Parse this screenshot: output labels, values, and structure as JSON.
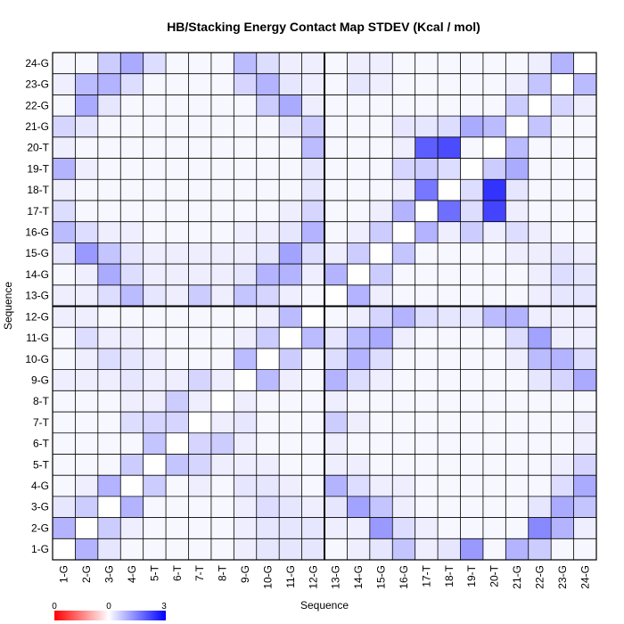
{
  "chart_data": {
    "type": "heatmap",
    "title": "HB/Stacking Energy Contact Map STDEV (Kcal / mol)",
    "xlabel": "Sequence",
    "ylabel": "Sequence",
    "labels": [
      "1-G",
      "2-G",
      "3-G",
      "4-G",
      "5-T",
      "6-T",
      "7-T",
      "8-T",
      "9-G",
      "10-G",
      "11-G",
      "12-G",
      "13-G",
      "14-G",
      "15-G",
      "16-G",
      "17-T",
      "18-T",
      "19-T",
      "20-T",
      "21-G",
      "22-G",
      "23-G",
      "24-G"
    ],
    "color_scale": {
      "min": 0,
      "mid": 0,
      "max": 3,
      "low_color": "#ff0000",
      "mid_color": "#ffffff",
      "high_color": "#0000ff"
    },
    "scale_ticks": [
      "0",
      "0",
      "3"
    ],
    "grid": true,
    "divider_after_index": 12,
    "values": [
      [
        0.0,
        0.9,
        0.3,
        0.1,
        0.1,
        0.1,
        0.1,
        0.1,
        0.2,
        0.3,
        0.3,
        0.3,
        0.1,
        0.2,
        0.3,
        0.7,
        0.2,
        0.3,
        1.2,
        0.1,
        0.9,
        0.6,
        0.1,
        0.1
      ],
      [
        0.9,
        0.0,
        0.6,
        0.2,
        0.1,
        0.1,
        0.1,
        0.1,
        0.2,
        0.3,
        0.3,
        0.3,
        0.2,
        0.2,
        1.2,
        0.4,
        0.2,
        0.1,
        0.1,
        0.1,
        0.1,
        1.4,
        0.9,
        0.2
      ],
      [
        0.3,
        0.6,
        0.0,
        0.9,
        0.1,
        0.1,
        0.1,
        0.1,
        0.2,
        0.4,
        0.3,
        0.2,
        0.3,
        1.1,
        0.7,
        0.2,
        0.1,
        0.1,
        0.1,
        0.1,
        0.1,
        0.3,
        1.0,
        0.7
      ],
      [
        0.1,
        0.2,
        0.9,
        0.0,
        0.6,
        0.1,
        0.2,
        0.1,
        0.3,
        0.3,
        0.2,
        0.1,
        0.9,
        0.4,
        0.2,
        0.2,
        0.1,
        0.1,
        0.1,
        0.1,
        0.1,
        0.1,
        0.4,
        1.0
      ],
      [
        0.1,
        0.1,
        0.1,
        0.6,
        0.0,
        0.7,
        0.5,
        0.2,
        0.2,
        0.2,
        0.1,
        0.1,
        0.2,
        0.2,
        0.1,
        0.1,
        0.1,
        0.1,
        0.1,
        0.1,
        0.1,
        0.1,
        0.2,
        0.5
      ],
      [
        0.1,
        0.1,
        0.1,
        0.1,
        0.7,
        0.0,
        0.5,
        0.6,
        0.2,
        0.1,
        0.1,
        0.1,
        0.2,
        0.1,
        0.1,
        0.1,
        0.1,
        0.1,
        0.1,
        0.1,
        0.1,
        0.1,
        0.1,
        0.2
      ],
      [
        0.1,
        0.1,
        0.1,
        0.4,
        0.5,
        0.5,
        0.0,
        0.2,
        0.3,
        0.1,
        0.1,
        0.1,
        0.6,
        0.2,
        0.1,
        0.1,
        0.1,
        0.1,
        0.1,
        0.1,
        0.1,
        0.1,
        0.1,
        0.2
      ],
      [
        0.1,
        0.1,
        0.1,
        0.2,
        0.2,
        0.6,
        0.2,
        0.0,
        0.2,
        0.1,
        0.1,
        0.1,
        0.2,
        0.1,
        0.1,
        0.1,
        0.1,
        0.1,
        0.1,
        0.1,
        0.1,
        0.1,
        0.1,
        0.1
      ],
      [
        0.2,
        0.2,
        0.2,
        0.3,
        0.2,
        0.2,
        0.5,
        0.2,
        0.0,
        0.8,
        0.2,
        0.1,
        0.9,
        0.4,
        0.2,
        0.1,
        0.1,
        0.1,
        0.1,
        0.1,
        0.1,
        0.3,
        0.5,
        1.0
      ],
      [
        0.1,
        0.2,
        0.4,
        0.3,
        0.2,
        0.1,
        0.1,
        0.1,
        0.8,
        0.0,
        0.6,
        0.1,
        0.4,
        0.9,
        0.4,
        0.1,
        0.1,
        0.1,
        0.1,
        0.1,
        0.2,
        0.8,
        0.9,
        0.4
      ],
      [
        0.1,
        0.4,
        0.2,
        0.2,
        0.1,
        0.1,
        0.1,
        0.1,
        0.2,
        0.6,
        0.0,
        0.8,
        0.3,
        0.8,
        1.0,
        0.2,
        0.1,
        0.1,
        0.1,
        0.1,
        0.4,
        1.1,
        0.2,
        0.2
      ],
      [
        0.2,
        0.2,
        0.1,
        0.1,
        0.1,
        0.1,
        0.1,
        0.1,
        0.1,
        0.2,
        0.8,
        0.0,
        0.1,
        0.2,
        0.5,
        0.9,
        0.4,
        0.3,
        0.3,
        0.8,
        0.9,
        0.2,
        0.2,
        0.2
      ],
      [
        0.2,
        0.2,
        0.4,
        0.8,
        0.3,
        0.2,
        0.6,
        0.2,
        0.7,
        0.5,
        0.2,
        0.1,
        0.0,
        0.9,
        0.2,
        0.1,
        0.1,
        0.1,
        0.1,
        0.1,
        0.1,
        0.2,
        0.3,
        0.3
      ],
      [
        0.1,
        0.2,
        1.0,
        0.4,
        0.2,
        0.2,
        0.2,
        0.2,
        0.3,
        0.9,
        0.9,
        0.2,
        0.9,
        0.0,
        0.6,
        0.1,
        0.1,
        0.1,
        0.1,
        0.1,
        0.1,
        0.2,
        0.4,
        0.3
      ],
      [
        0.3,
        1.2,
        0.7,
        0.3,
        0.2,
        0.2,
        0.2,
        0.2,
        0.2,
        0.3,
        1.1,
        0.4,
        0.2,
        0.6,
        0.0,
        0.7,
        0.1,
        0.1,
        0.1,
        0.1,
        0.2,
        0.2,
        0.3,
        0.2
      ],
      [
        0.8,
        0.4,
        0.2,
        0.2,
        0.1,
        0.1,
        0.1,
        0.1,
        0.2,
        0.2,
        0.3,
        0.9,
        0.1,
        0.2,
        0.6,
        0.0,
        0.9,
        0.2,
        0.6,
        0.2,
        0.4,
        0.2,
        0.1,
        0.1
      ],
      [
        0.4,
        0.1,
        0.1,
        0.1,
        0.1,
        0.1,
        0.1,
        0.1,
        0.1,
        0.1,
        0.2,
        0.5,
        0.1,
        0.1,
        0.2,
        0.9,
        0.0,
        1.7,
        0.4,
        2.2,
        0.2,
        0.1,
        0.1,
        0.1
      ],
      [
        0.2,
        0.1,
        0.1,
        0.1,
        0.1,
        0.1,
        0.1,
        0.1,
        0.1,
        0.1,
        0.1,
        0.3,
        0.1,
        0.1,
        0.1,
        0.2,
        1.6,
        0.0,
        0.4,
        2.4,
        0.3,
        0.1,
        0.1,
        0.1
      ],
      [
        0.9,
        0.2,
        0.1,
        0.1,
        0.1,
        0.1,
        0.1,
        0.1,
        0.1,
        0.1,
        0.1,
        0.3,
        0.1,
        0.1,
        0.1,
        0.5,
        0.6,
        0.4,
        0.0,
        0.6,
        1.0,
        0.1,
        0.1,
        0.1
      ],
      [
        0.2,
        0.1,
        0.1,
        0.1,
        0.1,
        0.1,
        0.1,
        0.1,
        0.1,
        0.1,
        0.1,
        0.8,
        0.1,
        0.1,
        0.1,
        0.2,
        1.9,
        2.1,
        0.1,
        0.0,
        0.8,
        0.1,
        0.1,
        0.1
      ],
      [
        0.5,
        0.3,
        0.1,
        0.1,
        0.1,
        0.1,
        0.1,
        0.1,
        0.1,
        0.1,
        0.3,
        0.6,
        0.1,
        0.1,
        0.1,
        0.3,
        0.3,
        0.4,
        1.0,
        0.8,
        0.0,
        0.7,
        0.1,
        0.1
      ],
      [
        0.1,
        1.0,
        0.3,
        0.1,
        0.1,
        0.1,
        0.1,
        0.1,
        0.1,
        0.6,
        1.0,
        0.2,
        0.1,
        0.1,
        0.1,
        0.1,
        0.1,
        0.1,
        0.1,
        0.1,
        0.6,
        0.0,
        0.5,
        0.2
      ],
      [
        0.2,
        0.8,
        0.9,
        0.4,
        0.1,
        0.1,
        0.1,
        0.1,
        0.5,
        0.9,
        0.3,
        0.2,
        0.1,
        0.3,
        0.2,
        0.1,
        0.1,
        0.1,
        0.1,
        0.1,
        0.2,
        0.7,
        0.0,
        0.8
      ],
      [
        0.1,
        0.1,
        0.6,
        1.0,
        0.4,
        0.1,
        0.1,
        0.1,
        0.8,
        0.4,
        0.2,
        0.2,
        0.1,
        0.2,
        0.2,
        0.1,
        0.1,
        0.1,
        0.1,
        0.1,
        0.1,
        0.2,
        0.9,
        0.0
      ]
    ]
  }
}
